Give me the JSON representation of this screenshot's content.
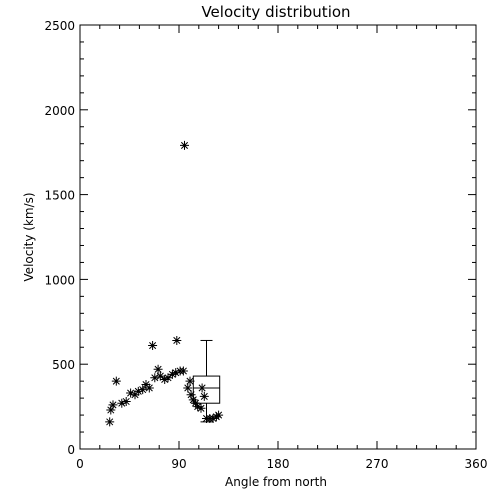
{
  "chart_data": {
    "type": "scatter",
    "title": "Velocity distribution",
    "xlabel": "Angle from north",
    "ylabel": "Velocity (km/s)",
    "xlim": [
      0,
      360
    ],
    "ylim": [
      0,
      2500
    ],
    "x_ticks": [
      {
        "value": 0,
        "label": "0"
      },
      {
        "value": 90,
        "label": "90"
      },
      {
        "value": 180,
        "label": "180"
      },
      {
        "value": 270,
        "label": "270"
      },
      {
        "value": 360,
        "label": "360"
      }
    ],
    "y_ticks": [
      {
        "value": 0,
        "label": "0"
      },
      {
        "value": 500,
        "label": "500"
      },
      {
        "value": 1000,
        "label": "1000"
      },
      {
        "value": 1500,
        "label": "1500"
      },
      {
        "value": 2000,
        "label": "2000"
      },
      {
        "value": 2500,
        "label": "2500"
      }
    ],
    "x_minor_step": 18,
    "y_minor_step": 100,
    "grid": false,
    "marker": "asterisk",
    "points": [
      {
        "x": 27,
        "y": 160
      },
      {
        "x": 28,
        "y": 230
      },
      {
        "x": 30,
        "y": 260
      },
      {
        "x": 33,
        "y": 400
      },
      {
        "x": 38,
        "y": 270
      },
      {
        "x": 42,
        "y": 280
      },
      {
        "x": 46,
        "y": 330
      },
      {
        "x": 50,
        "y": 320
      },
      {
        "x": 53,
        "y": 340
      },
      {
        "x": 57,
        "y": 350
      },
      {
        "x": 60,
        "y": 380
      },
      {
        "x": 63,
        "y": 360
      },
      {
        "x": 66,
        "y": 610
      },
      {
        "x": 68,
        "y": 420
      },
      {
        "x": 71,
        "y": 470
      },
      {
        "x": 73,
        "y": 430
      },
      {
        "x": 77,
        "y": 410
      },
      {
        "x": 80,
        "y": 420
      },
      {
        "x": 84,
        "y": 440
      },
      {
        "x": 87,
        "y": 450
      },
      {
        "x": 88,
        "y": 640
      },
      {
        "x": 91,
        "y": 460
      },
      {
        "x": 94,
        "y": 460
      },
      {
        "x": 95,
        "y": 1790
      },
      {
        "x": 98,
        "y": 360
      },
      {
        "x": 100,
        "y": 400
      },
      {
        "x": 101,
        "y": 320
      },
      {
        "x": 103,
        "y": 290
      },
      {
        "x": 105,
        "y": 270
      },
      {
        "x": 107,
        "y": 250
      },
      {
        "x": 110,
        "y": 240
      },
      {
        "x": 111,
        "y": 360
      },
      {
        "x": 113,
        "y": 310
      },
      {
        "x": 115,
        "y": 180
      },
      {
        "x": 118,
        "y": 180
      },
      {
        "x": 121,
        "y": 180
      },
      {
        "x": 124,
        "y": 190
      },
      {
        "x": 126,
        "y": 200
      }
    ],
    "boxplot": {
      "x_left": 103,
      "x_right": 127,
      "whisker_x": 115,
      "min": 160,
      "q1": 270,
      "median": 360,
      "q3": 430,
      "max": 640
    }
  }
}
